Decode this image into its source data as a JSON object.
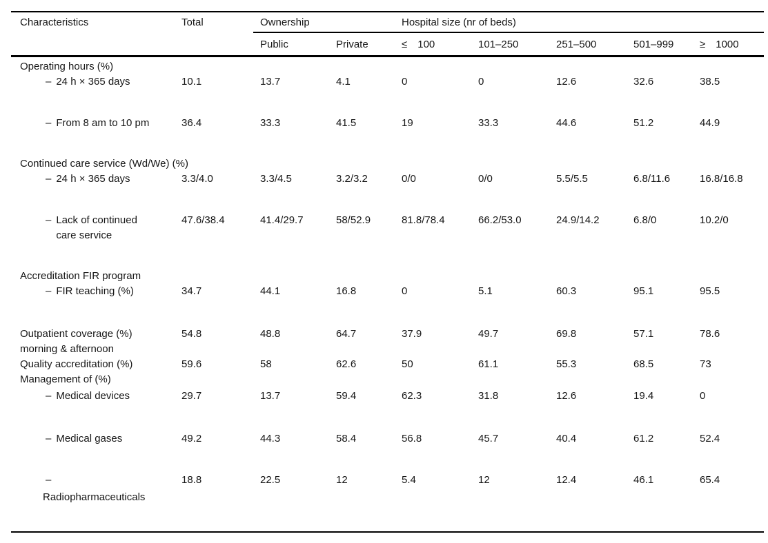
{
  "table": {
    "list_dash": "–",
    "columns": {
      "characteristics": "Characteristics",
      "total": "Total",
      "ownership_group": "Ownership",
      "hospital_size_group": "Hospital size (nr of beds)",
      "ownership_cols": [
        "Public",
        "Private"
      ],
      "hospital_size_cols": [
        "≤ 100",
        "101–250",
        "251–500",
        "501–999",
        "≥ 1000"
      ]
    },
    "rows": [
      {
        "type": "section",
        "label": "Operating hours (%)"
      },
      {
        "type": "sub",
        "label": "24 h × 365 days",
        "values": [
          "10.1",
          "13.7",
          "4.1",
          "0",
          "0",
          "12.6",
          "32.6",
          "38.5"
        ]
      },
      {
        "type": "sub",
        "label": "From 8 am to 10 pm",
        "values": [
          "36.4",
          "33.3",
          "41.5",
          "19",
          "33.3",
          "44.6",
          "51.2",
          "44.9"
        ]
      },
      {
        "type": "section",
        "label": "Continued care service (Wd/We) (%)"
      },
      {
        "type": "sub",
        "label": "24 h × 365 days",
        "values": [
          "3.3/4.0",
          "3.3/4.5",
          "3.2/3.2",
          "0/0",
          "0/0",
          "5.5/5.5",
          "6.8/11.6",
          "16.8/16.8"
        ]
      },
      {
        "type": "sub",
        "label": "Lack of continued\ncare service",
        "values": [
          "47.6/38.4",
          "41.4/29.7",
          "58/52.9",
          "81.8/78.4",
          "66.2/53.0",
          "24.9/14.2",
          "6.8/0",
          "10.2/0"
        ]
      },
      {
        "type": "section",
        "label": "Accreditation FIR program"
      },
      {
        "type": "sub",
        "label": "FIR teaching (%)",
        "values": [
          "34.7",
          "44.1",
          "16.8",
          "0",
          "5.1",
          "60.3",
          "95.1",
          "95.5"
        ]
      },
      {
        "type": "plain",
        "label": "Outpatient coverage (%)\nmorning & afternoon",
        "values": [
          "54.8",
          "48.8",
          "64.7",
          "37.9",
          "49.7",
          "69.8",
          "57.1",
          "78.6"
        ]
      },
      {
        "type": "plain",
        "label": "Quality accreditation (%)",
        "values": [
          "59.6",
          "58",
          "62.6",
          "50",
          "61.1",
          "55.3",
          "68.5",
          "73"
        ]
      },
      {
        "type": "section",
        "label": "Management of (%)"
      },
      {
        "type": "sub",
        "label": "Medical devices",
        "values": [
          "29.7",
          "13.7",
          "59.4",
          "62.3",
          "31.8",
          "12.6",
          "19.4",
          "0"
        ]
      },
      {
        "type": "sub",
        "label": "Medical gases",
        "values": [
          "49.2",
          "44.3",
          "58.4",
          "56.8",
          "45.7",
          "40.4",
          "61.2",
          "52.4"
        ]
      },
      {
        "type": "sub_stacked",
        "label": "Radiopharmaceuticals",
        "values": [
          "18.8",
          "22.5",
          "12",
          "5.4",
          "12",
          "12.4",
          "46.1",
          "65.4"
        ]
      }
    ]
  }
}
